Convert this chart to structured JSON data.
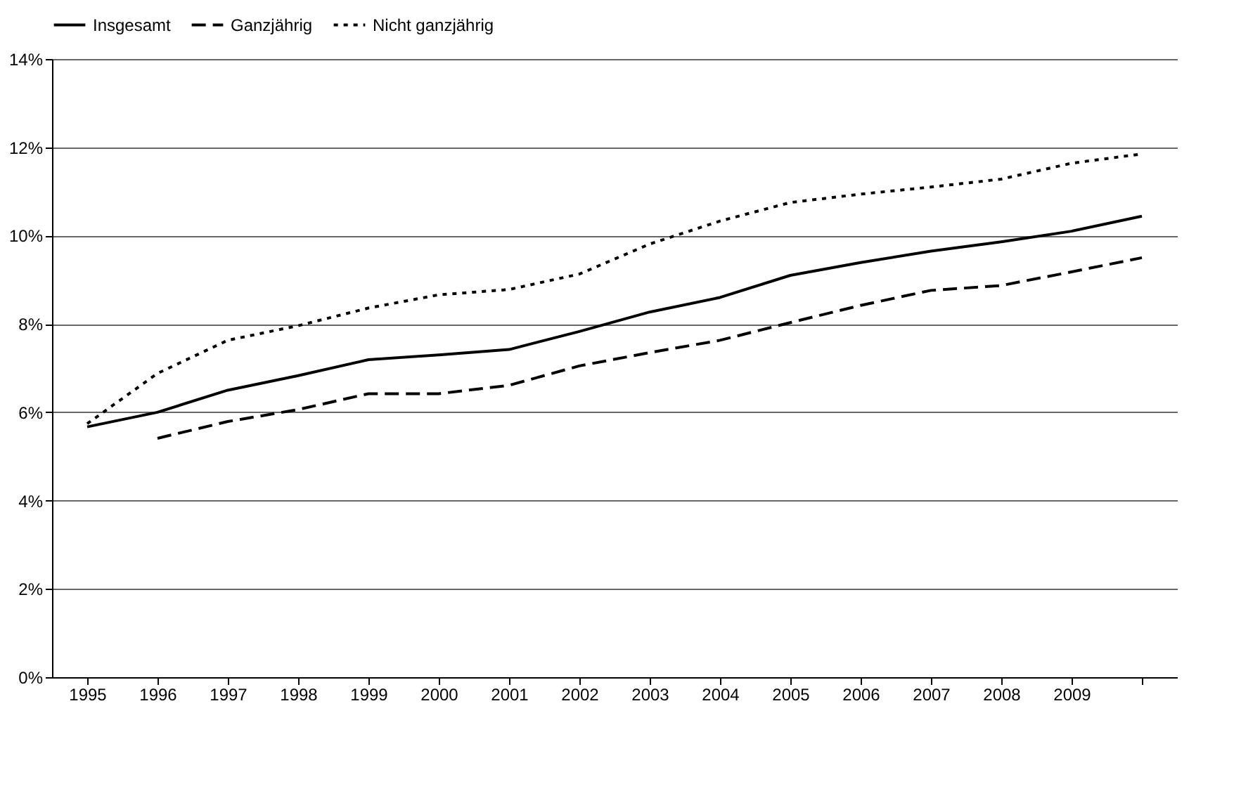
{
  "chart_data": {
    "type": "line",
    "categories": [
      "1995",
      "1996",
      "1997",
      "1998",
      "1999",
      "2000",
      "2001",
      "2002",
      "2003",
      "2004",
      "2005",
      "2006",
      "2007",
      "2008",
      "2009",
      null
    ],
    "series": [
      {
        "name": "Insgesamt",
        "color": "#000000",
        "line_style": "solid",
        "values": [
          5.67,
          6.0,
          6.5,
          6.83,
          7.19,
          7.3,
          7.42,
          7.83,
          8.27,
          8.6,
          9.1,
          9.39,
          9.65,
          9.86,
          10.1,
          10.44
        ]
      },
      {
        "name": "Ganzjährig",
        "color": "#000000",
        "line_style": "dashed",
        "values": [
          null,
          5.41,
          5.79,
          6.06,
          6.42,
          6.42,
          6.61,
          7.05,
          7.35,
          7.63,
          8.03,
          8.42,
          8.76,
          8.87,
          9.18,
          9.5
        ]
      },
      {
        "name": "Nicht ganzjährig",
        "color": "#000000",
        "line_style": "dotted",
        "values": [
          5.74,
          6.88,
          7.63,
          7.96,
          8.36,
          8.66,
          8.78,
          9.13,
          9.81,
          10.33,
          10.75,
          10.94,
          11.1,
          11.28,
          11.64,
          11.85
        ]
      }
    ],
    "ylim": [
      0,
      14
    ],
    "yticks": [
      {
        "value": 0,
        "label": "0%"
      },
      {
        "value": 2,
        "label": "2%"
      },
      {
        "value": 4,
        "label": "4%"
      },
      {
        "value": 6,
        "label": "6%"
      },
      {
        "value": 8,
        "label": "8%"
      },
      {
        "value": 10,
        "label": "10%"
      },
      {
        "value": 12,
        "label": "12%"
      },
      {
        "value": 14,
        "label": "14%"
      }
    ],
    "grid": "y",
    "legend": "top",
    "marker": "none"
  }
}
